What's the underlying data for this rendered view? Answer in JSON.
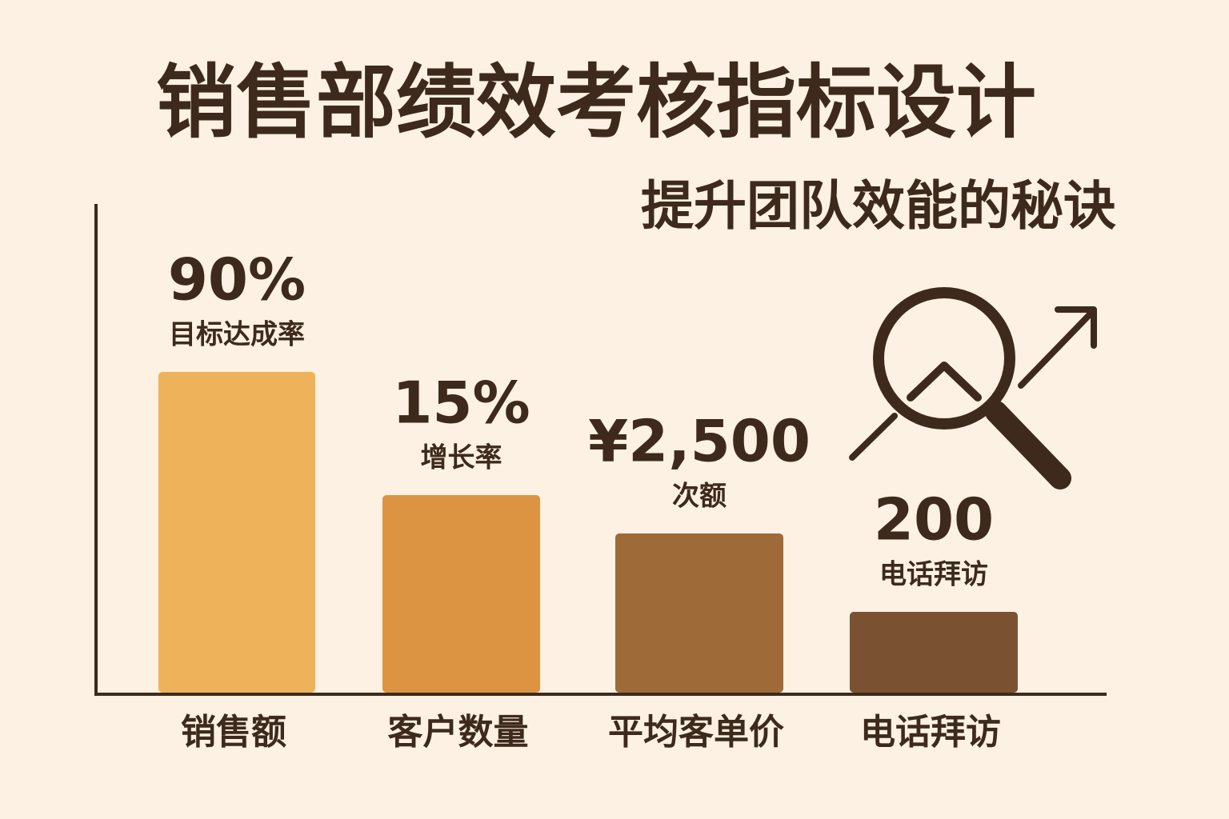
{
  "header": {
    "title": "销售部绩效考核指标设计",
    "subtitle": "提升团队效能的秘诀"
  },
  "items": [
    {
      "category": "销售额",
      "value": "90%",
      "caption": "目标达成率"
    },
    {
      "category": "客户数量",
      "value": "15%",
      "caption": "增长率"
    },
    {
      "category": "平均客单价",
      "value": "¥2,500",
      "caption": "次额"
    },
    {
      "category": "电话拜访",
      "value": "200",
      "caption": "电话拜访"
    }
  ]
}
